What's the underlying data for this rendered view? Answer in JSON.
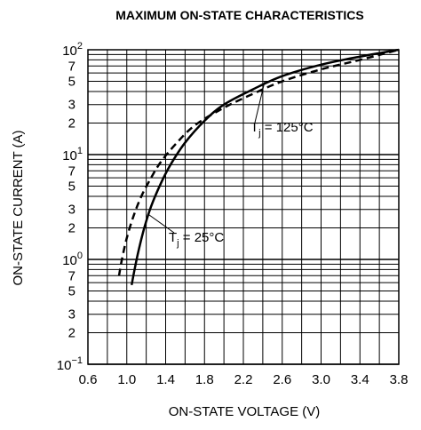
{
  "chart_data": {
    "type": "line",
    "title": "MAXIMUM ON-STATE CHARACTERISTICS",
    "xlabel": "ON-STATE VOLTAGE  (V)",
    "ylabel": "ON-STATE CURRENT  (A)",
    "xlim": [
      0.6,
      3.8
    ],
    "ylim": [
      0.1,
      100
    ],
    "y_scale": "log",
    "x_ticks": [
      0.6,
      1.0,
      1.4,
      1.8,
      2.2,
      2.6,
      3.0,
      3.4,
      3.8
    ],
    "x_tick_labels": [
      "0.6",
      "1.0",
      "1.4",
      "1.8",
      "2.2",
      "2.6",
      "3.0",
      "3.4",
      "3.8"
    ],
    "y_major_ticks": [
      {
        "value": 0.1,
        "base": "10",
        "exp": "−1"
      },
      {
        "value": 1,
        "base": "10",
        "exp": "0"
      },
      {
        "value": 10,
        "base": "10",
        "exp": "1"
      },
      {
        "value": 100,
        "base": "10",
        "exp": "2"
      }
    ],
    "y_minor_labeled": [
      {
        "value": 0.2,
        "label": "2"
      },
      {
        "value": 0.3,
        "label": "3"
      },
      {
        "value": 0.5,
        "label": "5"
      },
      {
        "value": 0.7,
        "label": "7"
      },
      {
        "value": 2,
        "label": "2"
      },
      {
        "value": 3,
        "label": "3"
      },
      {
        "value": 5,
        "label": "5"
      },
      {
        "value": 7,
        "label": "7"
      },
      {
        "value": 20,
        "label": "2"
      },
      {
        "value": 30,
        "label": "3"
      },
      {
        "value": 50,
        "label": "5"
      },
      {
        "value": 70,
        "label": "7"
      }
    ],
    "x_minor_grid": [
      0.8,
      1.2,
      1.6,
      2.0,
      2.4,
      2.8,
      3.2,
      3.6
    ],
    "grid": true,
    "series": [
      {
        "name": "Tj = 25°C",
        "style": "solid",
        "color": "#000000",
        "x": [
          1.05,
          1.08,
          1.12,
          1.18,
          1.25,
          1.35,
          1.45,
          1.6,
          1.8,
          2.0,
          2.3,
          2.6,
          3.0,
          3.4,
          3.8
        ],
        "y": [
          0.57,
          0.8,
          1.2,
          2.0,
          3.2,
          5.3,
          8.0,
          13.0,
          21.0,
          30.0,
          42.0,
          56.0,
          72.0,
          86.0,
          100.0
        ]
      },
      {
        "name": "Tj = 125°C",
        "style": "dashed",
        "color": "#000000",
        "x": [
          0.92,
          0.95,
          1.0,
          1.07,
          1.15,
          1.25,
          1.35,
          1.5,
          1.7,
          2.0,
          2.3,
          2.6,
          3.0,
          3.4,
          3.8
        ],
        "y": [
          0.7,
          1.0,
          1.6,
          2.6,
          4.0,
          6.0,
          8.5,
          12.5,
          19.0,
          28.0,
          38.0,
          50.0,
          65.0,
          80.0,
          100.0
        ]
      }
    ],
    "annotations": [
      {
        "series": 1,
        "label_main": "T",
        "label_sub": "j",
        "label_rest": " = 125°C",
        "anchor_x": 2.42,
        "anchor_y": 50.0
      },
      {
        "series": 0,
        "label_main": "T",
        "label_sub": "j",
        "label_rest": " = 25°C",
        "anchor_x": 1.22,
        "anchor_y": 2.7
      }
    ]
  }
}
